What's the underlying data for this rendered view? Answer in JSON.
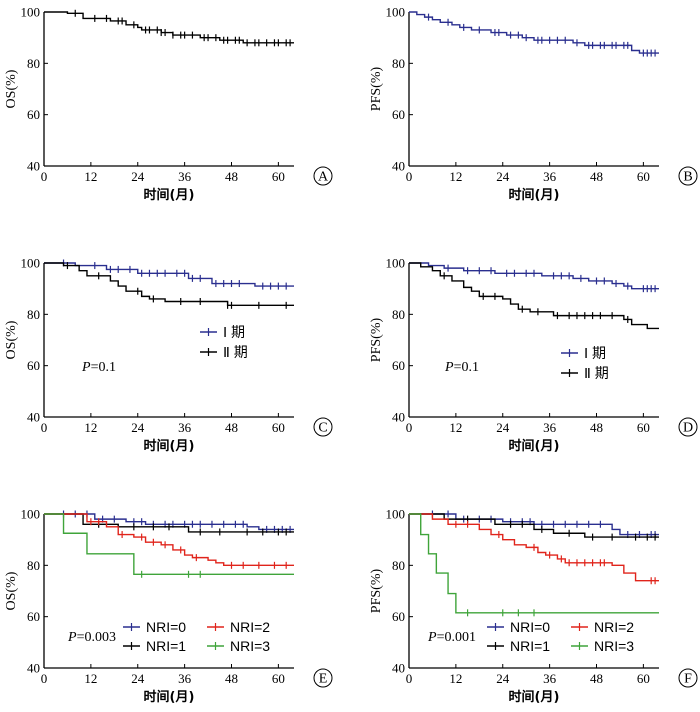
{
  "colors": {
    "blue": "#2a2f8f",
    "black": "#000000",
    "red": "#e0241b",
    "green": "#3fa43a"
  },
  "chart_data": [
    {
      "id": "A",
      "type": "line",
      "letter": "A",
      "ylabel": "OS(%)",
      "xlabel": "时间(月)",
      "xlim": [
        0,
        64
      ],
      "ylim": [
        40,
        100
      ],
      "xticks": [
        "0",
        "12",
        "24",
        "36",
        "48",
        "60"
      ],
      "yticks": [
        "40",
        "60",
        "80",
        "100"
      ],
      "legend": [],
      "pvalue": null,
      "series": [
        {
          "name": "",
          "color_key": "black",
          "steps": [
            [
              0,
              100
            ],
            [
              6,
              99.5
            ],
            [
              10,
              97.5
            ],
            [
              17,
              96.5
            ],
            [
              21,
              95
            ],
            [
              24,
              94
            ],
            [
              25,
              93
            ],
            [
              30,
              92
            ],
            [
              33,
              91
            ],
            [
              40,
              90
            ],
            [
              45,
              89
            ],
            [
              51,
              88
            ],
            [
              64,
              88
            ]
          ],
          "censor": [
            8,
            13,
            16,
            19,
            20,
            23,
            26,
            27,
            29,
            30,
            31,
            33,
            35,
            36,
            38,
            41,
            42,
            44,
            46,
            47,
            49,
            50,
            52,
            54,
            55,
            57,
            59,
            60,
            62,
            63
          ]
        }
      ]
    },
    {
      "id": "B",
      "type": "line",
      "letter": "B",
      "ylabel": "PFS(%)",
      "xlabel": "时间(月)",
      "xlim": [
        0,
        64
      ],
      "ylim": [
        40,
        100
      ],
      "xticks": [
        "0",
        "12",
        "24",
        "36",
        "48",
        "60"
      ],
      "yticks": [
        "40",
        "60",
        "80",
        "100"
      ],
      "legend": [],
      "pvalue": null,
      "series": [
        {
          "name": "",
          "color_key": "blue",
          "steps": [
            [
              0,
              100
            ],
            [
              2,
              99
            ],
            [
              4,
              98
            ],
            [
              6,
              97
            ],
            [
              8,
              96
            ],
            [
              11,
              95
            ],
            [
              13,
              94
            ],
            [
              16,
              93
            ],
            [
              21,
              92
            ],
            [
              25,
              91
            ],
            [
              29,
              90
            ],
            [
              32,
              89
            ],
            [
              42,
              88
            ],
            [
              45,
              87
            ],
            [
              57,
              85
            ],
            [
              59,
              84
            ],
            [
              64,
              84
            ]
          ],
          "censor": [
            5,
            10,
            14,
            18,
            22,
            23,
            26,
            28,
            30,
            33,
            34,
            36,
            38,
            40,
            43,
            46,
            47,
            49,
            50,
            52,
            53,
            55,
            56,
            60,
            61,
            62,
            63
          ]
        }
      ]
    },
    {
      "id": "C",
      "type": "line",
      "letter": "C",
      "ylabel": "OS(%)",
      "xlabel": "时间(月)",
      "xlim": [
        0,
        64
      ],
      "ylim": [
        40,
        100
      ],
      "xticks": [
        "0",
        "12",
        "24",
        "36",
        "48",
        "60"
      ],
      "yticks": [
        "40",
        "60",
        "80",
        "100"
      ],
      "legend": [
        {
          "label": "Ⅰ 期",
          "color_key": "blue"
        },
        {
          "label": "Ⅱ 期",
          "color_key": "black"
        }
      ],
      "pvalue": "=0.1",
      "series": [
        {
          "name": "Ⅰ 期",
          "color_key": "blue",
          "steps": [
            [
              0,
              100
            ],
            [
              8,
              99
            ],
            [
              16,
              97.5
            ],
            [
              24,
              96
            ],
            [
              37,
              94
            ],
            [
              43,
              92
            ],
            [
              52,
              92
            ],
            [
              54,
              91
            ],
            [
              64,
              91
            ]
          ],
          "censor": [
            5,
            13,
            17,
            19,
            22,
            25,
            27,
            29,
            31,
            34,
            36,
            38,
            40,
            44,
            46,
            48,
            50,
            56,
            58,
            60,
            62
          ]
        },
        {
          "name": "Ⅱ 期",
          "color_key": "black",
          "steps": [
            [
              0,
              100
            ],
            [
              5,
              99
            ],
            [
              9,
              97
            ],
            [
              11,
              95
            ],
            [
              17,
              93
            ],
            [
              19,
              91
            ],
            [
              21,
              89
            ],
            [
              25,
              87
            ],
            [
              27,
              86
            ],
            [
              31,
              85
            ],
            [
              47,
              83.5
            ],
            [
              64,
              83.5
            ]
          ],
          "censor": [
            6,
            14,
            24,
            28,
            35,
            40,
            47,
            48,
            55,
            62
          ]
        }
      ]
    },
    {
      "id": "D",
      "type": "line",
      "letter": "D",
      "ylabel": "PFS(%)",
      "xlabel": "时间(月)",
      "xlim": [
        0,
        64
      ],
      "ylim": [
        40,
        100
      ],
      "xticks": [
        "0",
        "12",
        "24",
        "36",
        "48",
        "60"
      ],
      "yticks": [
        "40",
        "60",
        "80",
        "100"
      ],
      "legend": [
        {
          "label": "Ⅰ 期",
          "color_key": "blue"
        },
        {
          "label": "Ⅱ 期",
          "color_key": "black"
        }
      ],
      "pvalue": "=0.1",
      "series": [
        {
          "name": "Ⅰ 期",
          "color_key": "blue",
          "steps": [
            [
              0,
              100
            ],
            [
              5,
              99
            ],
            [
              9,
              98
            ],
            [
              14,
              97
            ],
            [
              22,
              96
            ],
            [
              34,
              95
            ],
            [
              42,
              94
            ],
            [
              46,
              93
            ],
            [
              52,
              92
            ],
            [
              55,
              91
            ],
            [
              57,
              90
            ],
            [
              64,
              90
            ]
          ],
          "censor": [
            10,
            15,
            18,
            21,
            25,
            27,
            30,
            32,
            37,
            39,
            41,
            44,
            48,
            50,
            53,
            56,
            60,
            61,
            62,
            63
          ]
        },
        {
          "name": "Ⅱ 期",
          "color_key": "black",
          "steps": [
            [
              0,
              100
            ],
            [
              3,
              98.5
            ],
            [
              6,
              97
            ],
            [
              8,
              95
            ],
            [
              11,
              93
            ],
            [
              14,
              90.5
            ],
            [
              16,
              89
            ],
            [
              18,
              87
            ],
            [
              24,
              86
            ],
            [
              26,
              84
            ],
            [
              28,
              82
            ],
            [
              31,
              81
            ],
            [
              37,
              79.5
            ],
            [
              51,
              79.5
            ],
            [
              55,
              78
            ],
            [
              57,
              76
            ],
            [
              61,
              74.5
            ],
            [
              64,
              74.5
            ]
          ],
          "censor": [
            9,
            19,
            22,
            29,
            33,
            38,
            41,
            43,
            45,
            47,
            49,
            52,
            56
          ]
        }
      ]
    },
    {
      "id": "E",
      "type": "line",
      "letter": "E",
      "ylabel": "OS(%)",
      "xlabel": "时间(月)",
      "xlim": [
        0,
        64
      ],
      "ylim": [
        40,
        100
      ],
      "xticks": [
        "0",
        "12",
        "24",
        "36",
        "48",
        "60"
      ],
      "yticks": [
        "40",
        "60",
        "80",
        "100"
      ],
      "legend": [
        {
          "label": "NRI=0",
          "color_key": "blue"
        },
        {
          "label": "NRI=2",
          "color_key": "red"
        },
        {
          "label": "NRI=1",
          "color_key": "black"
        },
        {
          "label": "NRI=3",
          "color_key": "green"
        }
      ],
      "pvalue": "=0.003",
      "series": [
        {
          "name": "NRI=0",
          "color_key": "blue",
          "steps": [
            [
              0,
              100
            ],
            [
              13,
              98
            ],
            [
              21,
              97
            ],
            [
              26,
              96
            ],
            [
              52,
              95
            ],
            [
              55,
              94
            ],
            [
              64,
              94
            ]
          ],
          "censor": [
            5,
            8,
            11,
            15,
            18,
            23,
            25,
            28,
            31,
            33,
            36,
            38,
            40,
            43,
            46,
            49,
            51,
            57,
            59,
            61,
            63
          ]
        },
        {
          "name": "NRI=1",
          "color_key": "black",
          "steps": [
            [
              0,
              100
            ],
            [
              10,
              96
            ],
            [
              19,
              95
            ],
            [
              37,
              93
            ],
            [
              64,
              93
            ]
          ],
          "censor": [
            14,
            23,
            28,
            32,
            40,
            45,
            52,
            56,
            60,
            62
          ]
        },
        {
          "name": "NRI=2",
          "color_key": "red",
          "steps": [
            [
              0,
              100
            ],
            [
              11,
              97
            ],
            [
              16,
              95
            ],
            [
              19,
              92
            ],
            [
              23,
              91
            ],
            [
              26,
              89
            ],
            [
              30,
              88
            ],
            [
              33,
              86
            ],
            [
              36,
              84
            ],
            [
              38,
              83
            ],
            [
              42,
              82
            ],
            [
              44,
              81
            ],
            [
              46,
              80
            ],
            [
              64,
              80
            ]
          ],
          "censor": [
            12,
            14,
            20,
            25,
            28,
            31,
            35,
            39,
            48,
            51,
            55,
            59,
            62
          ]
        },
        {
          "name": "NRI=3",
          "color_key": "green",
          "steps": [
            [
              0,
              100
            ],
            [
              5,
              92.5
            ],
            [
              11,
              84.5
            ],
            [
              23,
              76.5
            ],
            [
              64,
              76.5
            ]
          ],
          "censor": [
            25,
            37,
            40
          ]
        }
      ]
    },
    {
      "id": "F",
      "type": "line",
      "letter": "F",
      "ylabel": "PFS(%)",
      "xlabel": "时间(月)",
      "xlim": [
        0,
        64
      ],
      "ylim": [
        40,
        100
      ],
      "xticks": [
        "0",
        "12",
        "24",
        "36",
        "48",
        "60"
      ],
      "yticks": [
        "40",
        "60",
        "80",
        "100"
      ],
      "legend": [
        {
          "label": "NRI=0",
          "color_key": "blue"
        },
        {
          "label": "NRI=2",
          "color_key": "red"
        },
        {
          "label": "NRI=1",
          "color_key": "black"
        },
        {
          "label": "NRI=3",
          "color_key": "green"
        }
      ],
      "pvalue": "=0.001",
      "series": [
        {
          "name": "NRI=0",
          "color_key": "blue",
          "steps": [
            [
              0,
              100
            ],
            [
              12,
              98
            ],
            [
              24,
              97
            ],
            [
              32,
              96
            ],
            [
              52,
              94
            ],
            [
              54,
              92
            ],
            [
              64,
              92
            ]
          ],
          "censor": [
            6,
            10,
            14,
            18,
            21,
            26,
            29,
            31,
            34,
            37,
            40,
            43,
            46,
            49,
            56,
            59,
            62,
            63
          ]
        },
        {
          "name": "NRI=1",
          "color_key": "black",
          "steps": [
            [
              0,
              100
            ],
            [
              9,
              98
            ],
            [
              22,
              96
            ],
            [
              32,
              94
            ],
            [
              37,
              92.5
            ],
            [
              45,
              91
            ],
            [
              64,
              91
            ]
          ],
          "censor": [
            15,
            26,
            29,
            34,
            41,
            47,
            52,
            58,
            61,
            63
          ]
        },
        {
          "name": "NRI=2",
          "color_key": "red",
          "steps": [
            [
              0,
              100
            ],
            [
              6,
              98
            ],
            [
              10,
              96
            ],
            [
              18,
              94
            ],
            [
              21,
              92
            ],
            [
              24,
              90
            ],
            [
              27,
              88
            ],
            [
              30,
              87
            ],
            [
              33,
              85
            ],
            [
              35,
              84
            ],
            [
              38,
              82.5
            ],
            [
              40,
              81
            ],
            [
              52,
              80
            ],
            [
              55,
              77
            ],
            [
              58,
              74
            ],
            [
              64,
              74
            ]
          ],
          "censor": [
            12,
            15,
            23,
            32,
            36,
            39,
            41,
            43,
            45,
            47,
            49,
            50,
            62,
            63
          ]
        },
        {
          "name": "NRI=3",
          "color_key": "green",
          "steps": [
            [
              0,
              100
            ],
            [
              3,
              92
            ],
            [
              5,
              84.5
            ],
            [
              7,
              77
            ],
            [
              10,
              69
            ],
            [
              12,
              61.5
            ],
            [
              64,
              61.5
            ]
          ],
          "censor": [
            15,
            24,
            28,
            32
          ]
        }
      ]
    }
  ]
}
